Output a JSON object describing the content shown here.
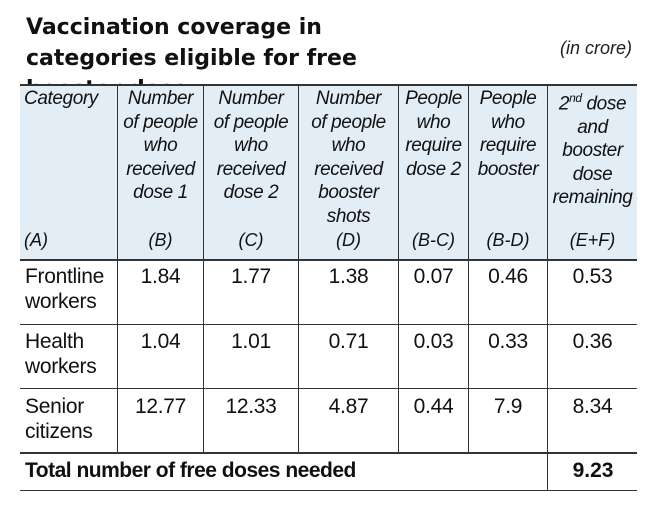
{
  "title": "Vaccination coverage in categories eligible for free booster dose",
  "unit": "(in crore)",
  "columns": [
    {
      "header": "Category",
      "code": "(A)"
    },
    {
      "header": "Number\nof people\nwho\nreceived\ndose 1",
      "code": "(B)"
    },
    {
      "header": "Number\nof people\nwho\nreceived\ndose 2",
      "code": "(C)"
    },
    {
      "header": "Number\nof people\nwho\nreceived\nbooster\nshots",
      "code": "(D)"
    },
    {
      "header": "People\nwho\nrequire\ndose 2",
      "code": "(B-C)"
    },
    {
      "header": "People\nwho\nrequire\nbooster",
      "code": "(B-D)"
    },
    {
      "header_sup_base": "2",
      "header_sup": "nd",
      "header_rest": " dose\nand\nbooster\ndose\nremaining",
      "code": "(E+F)"
    }
  ],
  "rows": [
    {
      "category": "Frontline\nworkers",
      "values": [
        "1.84",
        "1.77",
        "1.38",
        "0.07",
        "0.46",
        "0.53"
      ]
    },
    {
      "category": "Health\nworkers",
      "values": [
        "1.04",
        "1.01",
        "0.71",
        "0.03",
        "0.33",
        "0.36"
      ]
    },
    {
      "category": "Senior\ncitizens",
      "values": [
        "12.77",
        "12.33",
        "4.87",
        "0.44",
        "7.9",
        "8.34"
      ]
    }
  ],
  "total": {
    "label": "Total number of free doses needed",
    "value": "9.23"
  }
}
